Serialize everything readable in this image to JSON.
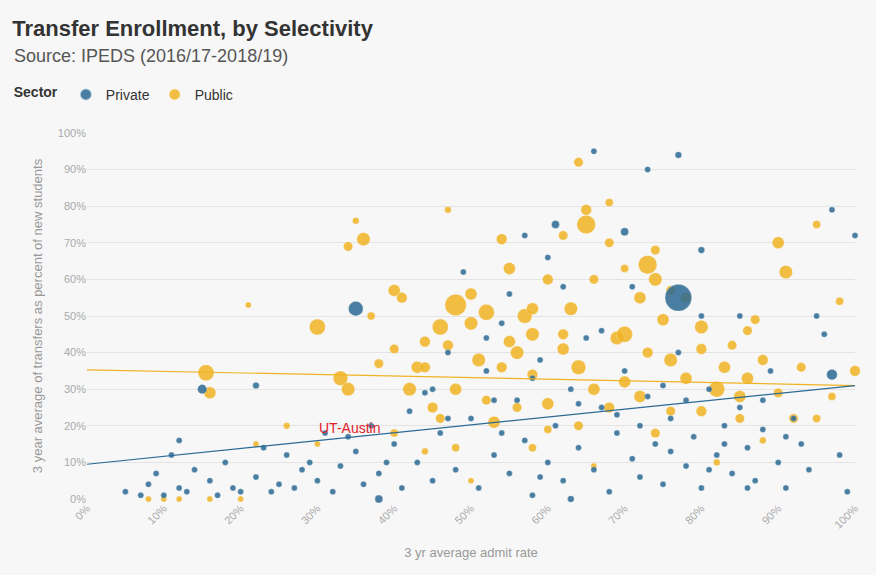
{
  "chart_data": {
    "type": "scatter",
    "title": "Transfer Enrollment, by Selectivity",
    "subtitle": "Source: IPEDS (2016/17-2018/19)",
    "legend_title": "Sector",
    "legend": "top-left",
    "x_label": "3 yr average admit rate",
    "y_label": "3 year average of transfers as percent of new students",
    "xlim": [
      0,
      100
    ],
    "ylim": [
      0,
      100
    ],
    "xticks": [
      {
        "value": 0,
        "label": "0%"
      },
      {
        "value": 10,
        "label": "10%"
      },
      {
        "value": 20,
        "label": "20%"
      },
      {
        "value": 30,
        "label": "30%"
      },
      {
        "value": 40,
        "label": "40%"
      },
      {
        "value": 50,
        "label": "50%"
      },
      {
        "value": 60,
        "label": "60%"
      },
      {
        "value": 70,
        "label": "70%"
      },
      {
        "value": 80,
        "label": "80%"
      },
      {
        "value": 90,
        "label": "90%"
      },
      {
        "value": 100,
        "label": "100%"
      }
    ],
    "yticks": [
      {
        "value": 0,
        "label": "0%"
      },
      {
        "value": 10,
        "label": "10%"
      },
      {
        "value": 20,
        "label": "20%"
      },
      {
        "value": 30,
        "label": "30%"
      },
      {
        "value": 40,
        "label": "40%"
      },
      {
        "value": 50,
        "label": "50%"
      },
      {
        "value": 60,
        "label": "60%"
      },
      {
        "value": 70,
        "label": "70%"
      },
      {
        "value": 80,
        "label": "80%"
      },
      {
        "value": 90,
        "label": "90%"
      },
      {
        "value": 100,
        "label": "100%"
      }
    ],
    "grid": true,
    "annotations": [
      {
        "text": "UT-Austin",
        "x": 34.2,
        "y": 19.4
      }
    ],
    "series": [
      {
        "name": "Private",
        "color": "#2b6a94",
        "marker": "circle",
        "x": [
          77,
          35,
          77,
          15,
          22,
          12,
          38,
          63,
          97,
          80,
          70,
          61,
          57,
          5,
          7,
          8,
          9,
          10,
          11,
          12,
          13,
          14,
          16,
          17,
          18,
          19,
          20,
          22,
          23,
          25,
          26,
          27,
          28,
          30,
          31,
          32,
          33,
          35,
          36,
          37,
          38,
          40,
          41,
          42,
          43,
          45,
          45,
          46,
          47,
          48,
          49,
          50,
          51,
          52,
          53,
          54,
          55,
          56,
          57,
          58,
          59,
          60,
          61,
          62,
          63,
          64,
          65,
          66,
          67,
          68,
          69,
          70,
          71,
          72,
          73,
          74,
          75,
          76,
          77,
          78,
          79,
          80,
          81,
          82,
          83,
          84,
          85,
          86,
          87,
          88,
          89,
          90,
          91,
          92,
          93,
          94,
          96,
          97,
          98,
          99,
          100,
          60,
          66,
          73,
          52,
          44,
          71,
          85,
          62,
          55,
          67,
          75,
          80,
          95,
          58,
          69,
          78,
          83,
          88,
          54,
          64,
          72,
          76,
          81,
          86,
          91,
          59,
          53,
          47,
          39,
          34,
          29,
          24
        ],
        "values": [
          55,
          52,
          94,
          30,
          31,
          16,
          0,
          0,
          34,
          68,
          73,
          75,
          72,
          2,
          1,
          4,
          7,
          1,
          12,
          3,
          2,
          8,
          5,
          1,
          10,
          3,
          2,
          6,
          14,
          4,
          12,
          3,
          8,
          5,
          18,
          2,
          9,
          13,
          4,
          20,
          7,
          15,
          3,
          24,
          10,
          5,
          30,
          18,
          40,
          8,
          62,
          22,
          3,
          35,
          12,
          48,
          7,
          27,
          16,
          1,
          38,
          10,
          20,
          5,
          30,
          14,
          44,
          8,
          25,
          2,
          18,
          35,
          11,
          6,
          28,
          15,
          4,
          22,
          40,
          9,
          17,
          3,
          30,
          12,
          20,
          7,
          25,
          14,
          5,
          19,
          35,
          10,
          3,
          22,
          15,
          8,
          45,
          79,
          12,
          2,
          72,
          66,
          95,
          90,
          44,
          29,
          58,
          50,
          58,
          56,
          46,
          31,
          50,
          50,
          33,
          23,
          27,
          15,
          27,
          18,
          26,
          20,
          13,
          8,
          3,
          17,
          6,
          27,
          22,
          10,
          17,
          10,
          2
        ],
        "sizes": [
          20,
          11,
          5,
          7,
          5,
          4,
          6,
          5,
          8,
          5,
          6,
          6,
          4,
          2,
          2,
          2,
          2,
          2,
          2,
          2,
          2,
          2,
          2,
          2,
          2,
          2,
          2,
          2,
          2,
          2,
          2,
          2,
          2,
          2,
          2,
          2,
          2,
          2,
          2,
          2,
          2,
          2,
          2,
          2,
          2,
          2,
          2,
          2,
          2,
          2,
          2,
          2,
          2,
          2,
          2,
          2,
          2,
          2,
          2,
          2,
          2,
          2,
          2,
          2,
          2,
          2,
          2,
          2,
          2,
          2,
          2,
          2,
          2,
          2,
          2,
          2,
          2,
          2,
          2,
          2,
          2,
          2,
          2,
          2,
          2,
          2,
          2,
          2,
          2,
          2,
          2,
          2,
          2,
          2,
          2,
          2,
          2,
          2,
          2,
          2,
          2,
          2,
          2,
          2,
          2,
          2,
          2,
          2,
          2,
          2,
          2,
          2,
          2,
          2,
          2,
          2,
          2,
          2,
          2,
          2,
          2,
          2,
          2,
          2,
          2,
          2,
          2,
          2,
          2,
          2,
          2,
          2,
          2
        ],
        "trend": {
          "x": [
            0,
            100
          ],
          "values": [
            9.5,
            31
          ]
        }
      },
      {
        "name": "Public",
        "color": "#f0b323",
        "marker": "circle",
        "x": [
          15.5,
          16,
          30,
          33,
          34,
          36,
          35,
          34,
          37,
          40,
          41,
          42,
          43,
          44,
          46,
          47,
          47,
          48,
          50,
          50,
          52,
          53,
          55,
          54,
          56,
          57,
          58,
          58,
          60,
          62,
          63,
          64,
          65,
          65,
          66,
          68,
          69,
          70,
          72,
          73,
          74,
          74,
          75,
          76,
          78,
          80,
          82,
          83,
          85,
          87,
          90,
          91,
          93,
          95,
          98,
          100,
          62,
          64,
          58,
          56,
          45,
          48,
          51,
          44,
          38,
          40,
          52,
          60,
          68,
          70,
          72,
          78,
          80,
          84,
          86,
          88,
          92,
          95,
          97,
          66,
          70,
          76,
          60,
          54,
          62,
          68,
          40,
          44,
          46,
          48,
          58,
          64,
          74,
          80,
          85,
          90,
          22,
          26,
          30,
          10,
          12,
          16,
          20,
          8,
          21,
          50,
          66,
          82,
          88,
          76,
          55,
          73,
          86
        ],
        "values": [
          34.5,
          29,
          47,
          33,
          30,
          71,
          76,
          69,
          50,
          57,
          55,
          30,
          36,
          43,
          47,
          79,
          42,
          53,
          48,
          56,
          51,
          21,
          63,
          36,
          40,
          50,
          52,
          45,
          26,
          45,
          52,
          92,
          75,
          79,
          30,
          81,
          44,
          45,
          55,
          64,
          60,
          68,
          49,
          38,
          55,
          47,
          30,
          36,
          28,
          49,
          70,
          62,
          36,
          75,
          54,
          35,
          41,
          36,
          34,
          25,
          25,
          30,
          38,
          36,
          37,
          41,
          27,
          19,
          25,
          32,
          28,
          33,
          41,
          42,
          33,
          38,
          22,
          22,
          28,
          60,
          63,
          57,
          60,
          71,
          72,
          70,
          18,
          13,
          22,
          14,
          14,
          20,
          18,
          24,
          22,
          29,
          15,
          20,
          15,
          0,
          0,
          0,
          0,
          0,
          53,
          5,
          9,
          10,
          16,
          24,
          43,
          40,
          46
        ],
        "sizes": [
          12,
          9,
          12,
          11,
          10,
          10,
          5,
          7,
          6,
          9,
          8,
          10,
          9,
          8,
          12,
          5,
          8,
          16,
          10,
          9,
          12,
          9,
          9,
          8,
          10,
          11,
          9,
          10,
          9,
          8,
          10,
          7,
          14,
          8,
          9,
          6,
          10,
          12,
          9,
          14,
          10,
          7,
          9,
          10,
          8,
          10,
          12,
          9,
          9,
          7,
          9,
          10,
          7,
          6,
          6,
          8,
          9,
          11,
          8,
          7,
          8,
          9,
          10,
          8,
          7,
          7,
          7,
          6,
          8,
          9,
          9,
          9,
          8,
          7,
          9,
          8,
          7,
          6,
          6,
          7,
          6,
          7,
          8,
          8,
          7,
          7,
          6,
          5,
          7,
          6,
          6,
          7,
          7,
          8,
          7,
          7,
          4,
          5,
          4,
          4,
          4,
          4,
          4,
          3,
          3,
          4,
          4,
          5,
          5,
          7,
          9,
          8,
          7
        ],
        "trend": {
          "x": [
            0,
            100
          ],
          "values": [
            35.3,
            31
          ]
        }
      }
    ]
  }
}
